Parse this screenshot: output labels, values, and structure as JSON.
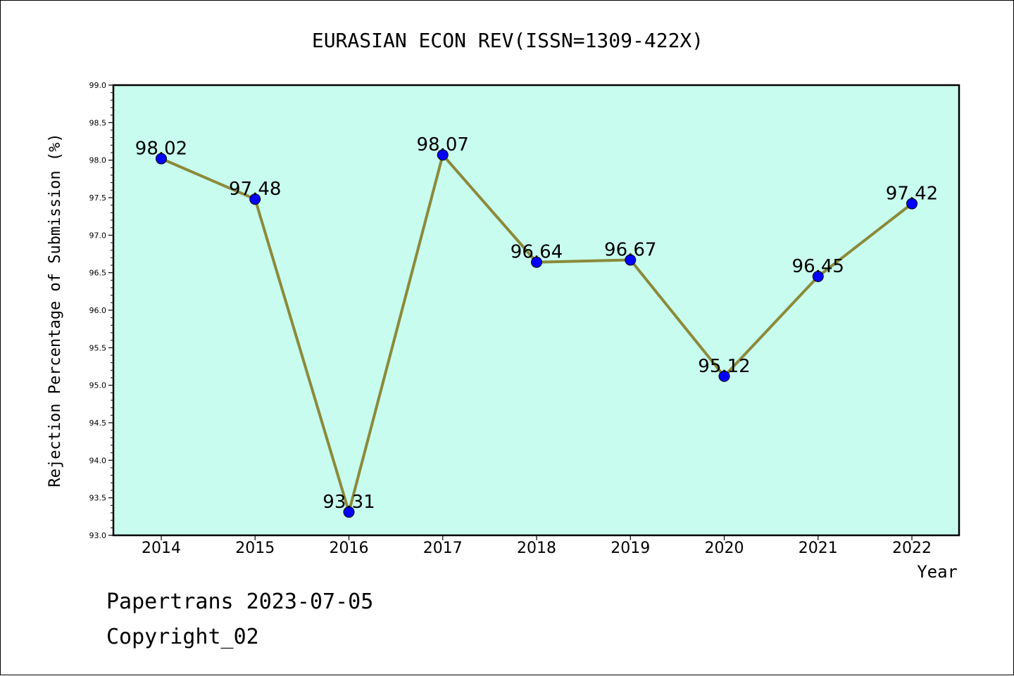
{
  "chart_data": {
    "type": "line",
    "title": "EURASIAN ECON REV(ISSN=1309-422X)",
    "xlabel": "Year",
    "ylabel": "Rejection Percentage of Submission (%)",
    "categories": [
      "2014",
      "2015",
      "2016",
      "2017",
      "2018",
      "2019",
      "2020",
      "2021",
      "2022"
    ],
    "values": [
      98.02,
      97.48,
      93.31,
      98.07,
      96.64,
      96.67,
      95.12,
      96.45,
      97.42
    ],
    "data_labels": [
      "98.02",
      "97.48",
      "93.31",
      "98.07",
      "96.64",
      "96.67",
      "95.12",
      "96.45",
      "97.42"
    ],
    "ylim": [
      93.0,
      99.0
    ],
    "y_ticks": [
      "93.0",
      "93.5",
      "94.0",
      "94.5",
      "95.0",
      "95.5",
      "96.0",
      "96.5",
      "97.0",
      "97.5",
      "98.0",
      "98.5",
      "99.0"
    ],
    "grid": false,
    "colors": {
      "plot_background": "#c8fcee",
      "line": "#8b8a3a",
      "marker": "#0000ff"
    }
  },
  "footer": {
    "credit": "Papertrans 2023-07-05",
    "copyright": "Copyright_02"
  }
}
